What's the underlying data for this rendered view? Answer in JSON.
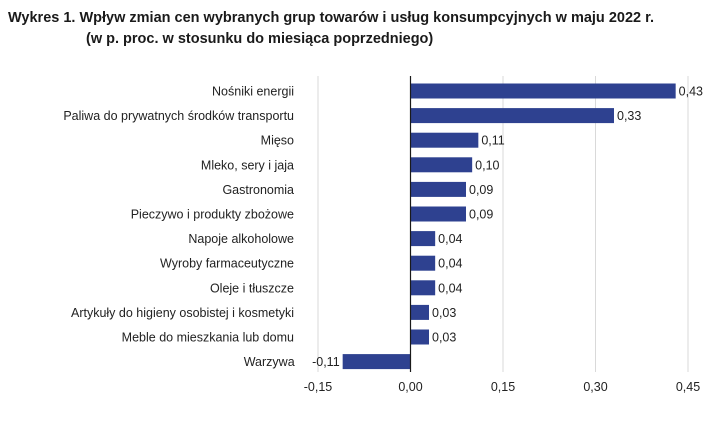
{
  "title": "Wykres 1. Wpływ zmian cen wybranych grup towarów i usług konsumpcyjnych w maju 2022 r.",
  "subtitle": "(w p. proc. w stosunku do miesiąca poprzedniego)",
  "colors": {
    "bar": "#2e4190",
    "gridline": "#d9d9d9",
    "axis": "#1a1a1a"
  },
  "chart_data": {
    "type": "bar",
    "orientation": "horizontal",
    "categories": [
      "Nośniki energii",
      "Paliwa do prywatnych środków transportu",
      "Mięso",
      "Mleko, sery i jaja",
      "Gastronomia",
      "Pieczywo i produkty zbożowe",
      "Napoje alkoholowe",
      "Wyroby farmaceutyczne",
      "Oleje i tłuszcze",
      "Artykuły do higieny osobistej i kosmetyki",
      "Meble do mieszkania lub domu",
      "Warzywa"
    ],
    "values": [
      0.43,
      0.33,
      0.11,
      0.1,
      0.09,
      0.09,
      0.04,
      0.04,
      0.04,
      0.03,
      0.03,
      -0.11
    ],
    "value_labels": [
      "0,43",
      "0,33",
      "0,11",
      "0,10",
      "0,09",
      "0,09",
      "0,04",
      "0,04",
      "0,04",
      "0,03",
      "0,03",
      "-0,11"
    ],
    "xlim": [
      -0.15,
      0.45
    ],
    "xticks": [
      -0.15,
      0.0,
      0.15,
      0.3,
      0.45
    ],
    "xtick_labels": [
      "-0,15",
      "0,00",
      "0,15",
      "0,30",
      "0,45"
    ],
    "grid": true
  }
}
